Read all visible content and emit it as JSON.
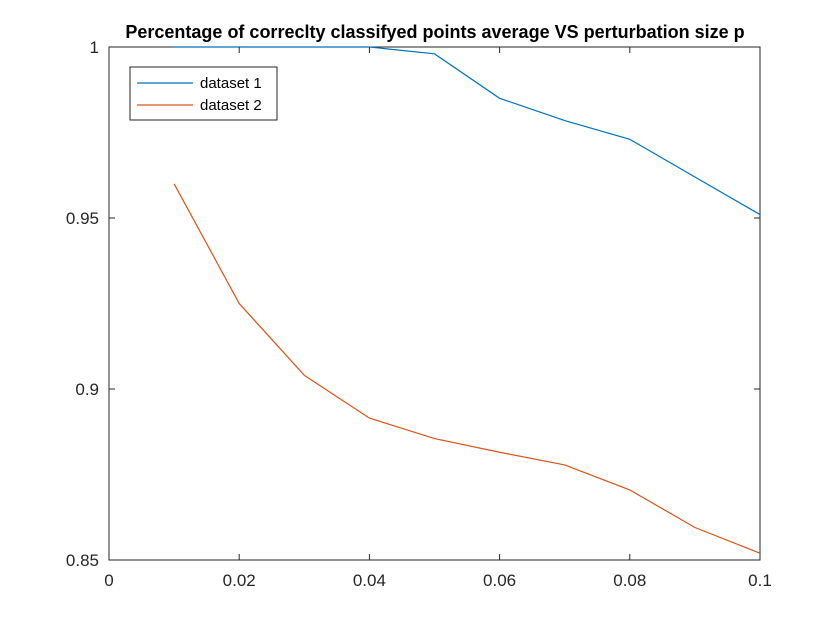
{
  "chart_data": {
    "type": "line",
    "title": "Percentage of correclty classifyed points average VS perturbation size p",
    "xlabel": "",
    "ylabel": "",
    "xlim": [
      0,
      0.1
    ],
    "ylim": [
      0.85,
      1
    ],
    "x_ticks": [
      0,
      0.02,
      0.04,
      0.06,
      0.08,
      0.1
    ],
    "x_tick_labels": [
      "0",
      "0.02",
      "0.04",
      "0.06",
      "0.08",
      "0.1"
    ],
    "y_ticks": [
      0.85,
      0.9,
      0.95,
      1
    ],
    "y_tick_labels": [
      "0.85",
      "0.9",
      "0.95",
      "1"
    ],
    "grid": false,
    "legend_position": "top-left",
    "series": [
      {
        "name": "dataset 1",
        "color": "#0072BD",
        "x": [
          0.01,
          0.02,
          0.03,
          0.04,
          0.05,
          0.06,
          0.07,
          0.08,
          0.09,
          0.1
        ],
        "y": [
          1.0,
          1.0,
          1.0,
          1.0,
          0.998,
          0.985,
          0.9785,
          0.973,
          0.962,
          0.951
        ]
      },
      {
        "name": "dataset 2",
        "color": "#D95319",
        "x": [
          0.01,
          0.02,
          0.03,
          0.04,
          0.05,
          0.06,
          0.07,
          0.08,
          0.09,
          0.1
        ],
        "y": [
          0.96,
          0.925,
          0.904,
          0.8915,
          0.8855,
          0.8815,
          0.8778,
          0.8705,
          0.8595,
          0.852
        ]
      }
    ]
  }
}
